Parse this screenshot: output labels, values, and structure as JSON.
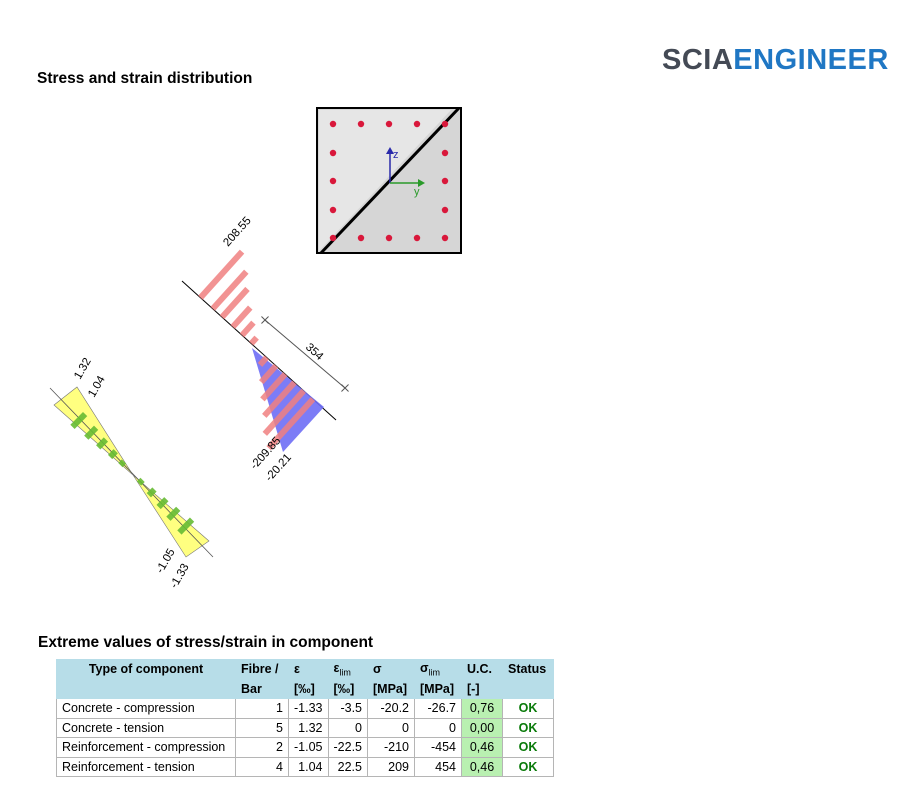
{
  "logo": {
    "part1": "SCIA",
    "part2": "ENGINEER"
  },
  "headings": {
    "stress_strain": "Stress and strain distribution",
    "extreme_values": "Extreme values of stress/strain in component"
  },
  "section": {
    "axis_z": "z",
    "axis_y": "y"
  },
  "labels": {
    "stress_top": "208.55",
    "stress_bottom": "-209.85",
    "concrete_stress_bottom": "-20.21",
    "depth": "354",
    "strain_top_outer": "1.32",
    "strain_top_inner": "1.04",
    "strain_bottom_inner": "-1.05",
    "strain_bottom_outer": "-1.33"
  },
  "colors": {
    "rebar_stress": "#f08080",
    "concrete_stress": "#6e6ef5",
    "strain_concrete": "#ffff80",
    "strain_rebar": "#66bb33",
    "rebar_dot": "#d9183b",
    "uc_cell": "#b9f0b1",
    "status_ok": "#0a7a0a",
    "table_header": "#b7dde8"
  },
  "table": {
    "headers": {
      "type": "Type of component",
      "fibre1": "Fibre /",
      "fibre2": "Bar",
      "eps": "ε",
      "eps_unit": "[‰]",
      "epslim": "ε",
      "epslim_sub": "lim",
      "epslim_unit": "[‰]",
      "sigma": "σ",
      "sigma_unit": "[MPa]",
      "sigmalim": "σ",
      "sigmalim_sub": "lim",
      "sigmalim_unit": "[MPa]",
      "uc": "U.C.",
      "uc_unit": "[-]",
      "status": "Status"
    },
    "rows": [
      {
        "type": "Concrete - compression",
        "fibre": "1",
        "eps": "-1.33",
        "epslim": "-3.5",
        "sigma": "-20.2",
        "sigmalim": "-26.7",
        "uc": "0,76",
        "status": "OK"
      },
      {
        "type": "Concrete - tension",
        "fibre": "5",
        "eps": "1.32",
        "epslim": "0",
        "sigma": "0",
        "sigmalim": "0",
        "uc": "0,00",
        "status": "OK"
      },
      {
        "type": "Reinforcement - compression",
        "fibre": "2",
        "eps": "-1.05",
        "epslim": "-22.5",
        "sigma": "-210",
        "sigmalim": "-454",
        "uc": "0,46",
        "status": "OK"
      },
      {
        "type": "Reinforcement - tension",
        "fibre": "4",
        "eps": "1.04",
        "epslim": "22.5",
        "sigma": "209",
        "sigmalim": "454",
        "uc": "0,46",
        "status": "OK"
      }
    ]
  }
}
